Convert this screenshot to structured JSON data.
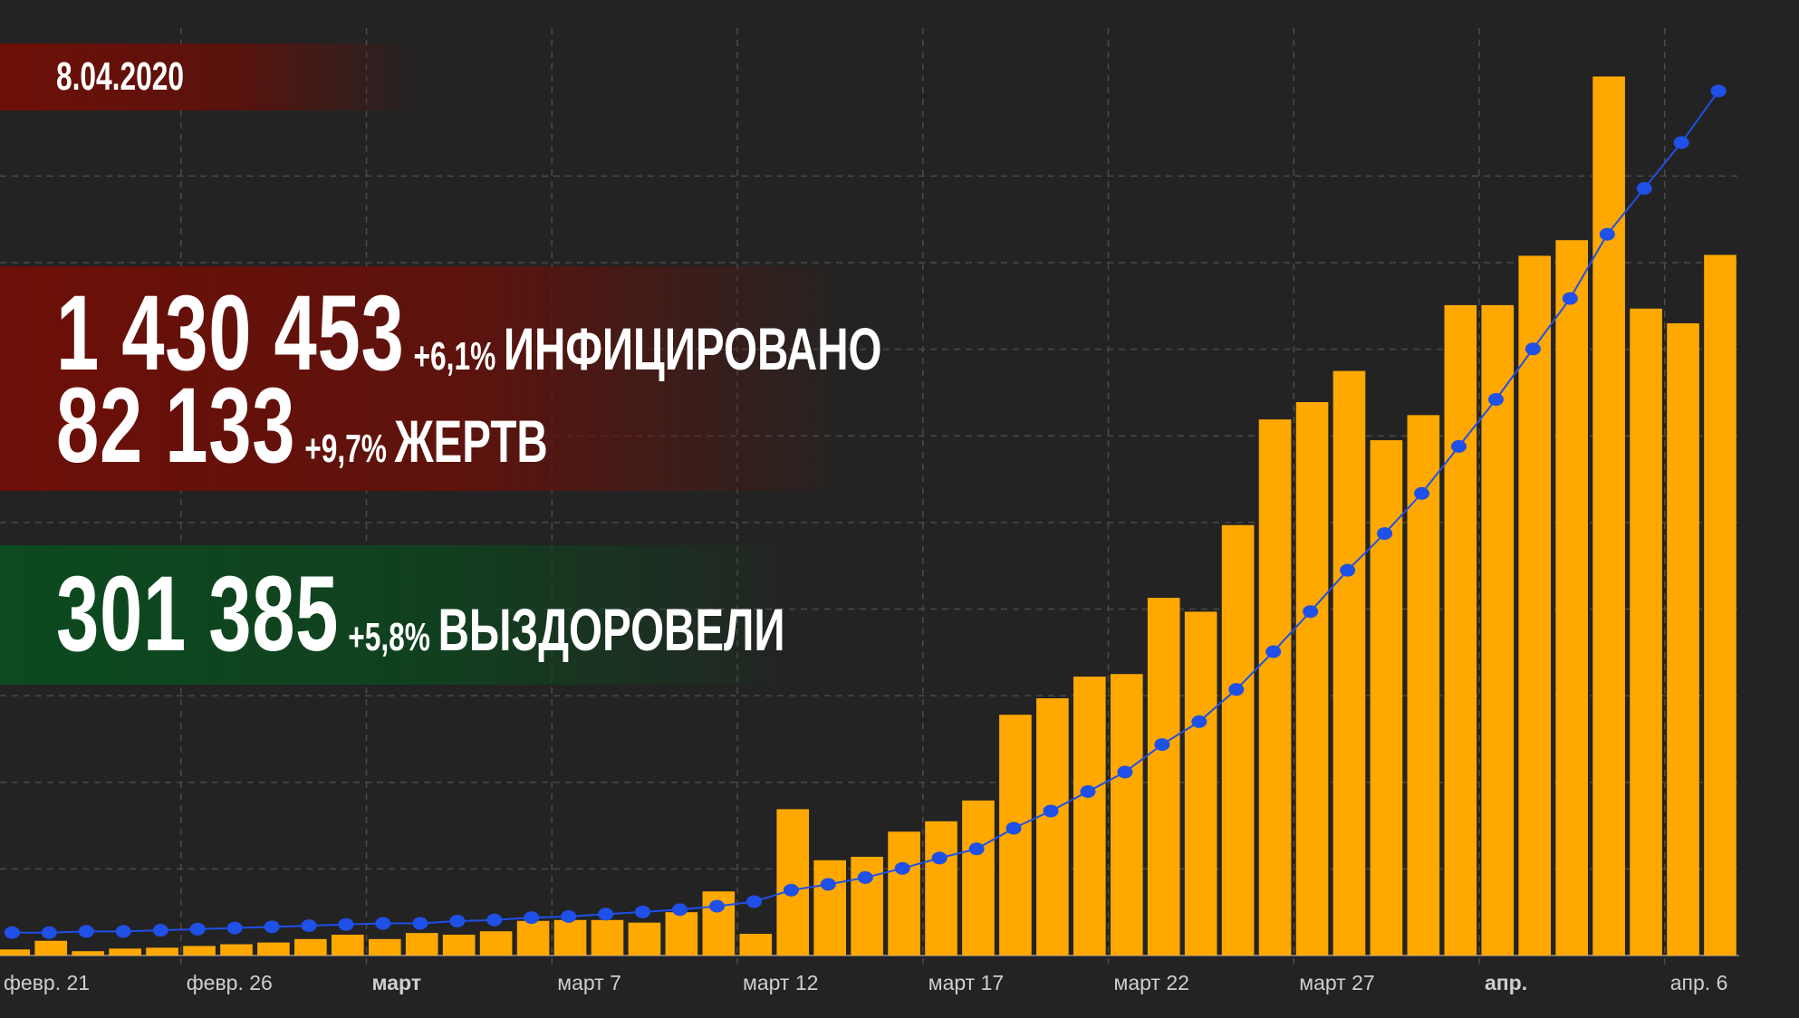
{
  "date": "8.04.2020",
  "stats": [
    {
      "value": "1 430 453",
      "change": "+6,1%",
      "label": "ИНФИЦИРОВАНО"
    },
    {
      "value": "82 133",
      "change": "+9,7%",
      "label": "ЖЕРТВ"
    },
    {
      "value": "301 385",
      "change": "+5,8%",
      "label": "ВЫЗДОРОВЕЛИ"
    }
  ],
  "chart_data": {
    "type": "bar",
    "categories": [
      "февр. 21",
      null,
      null,
      null,
      null,
      "февр. 26",
      null,
      null,
      null,
      null,
      "март",
      null,
      null,
      null,
      null,
      "март 7",
      null,
      null,
      null,
      null,
      "март 12",
      null,
      null,
      null,
      null,
      "март 17",
      null,
      null,
      null,
      null,
      "март 22",
      null,
      null,
      null,
      null,
      "март 27",
      null,
      null,
      null,
      null,
      "апр.",
      null,
      null,
      null,
      null,
      "апр. 6",
      null
    ],
    "series": [
      {
        "type": "bar",
        "color": "#ffa800",
        "values": [
          0.7,
          1.7,
          0.5,
          0.8,
          0.9,
          1.1,
          1.3,
          1.5,
          1.9,
          2.4,
          1.9,
          2.6,
          2.4,
          2.8,
          4.0,
          4.1,
          4.1,
          3.8,
          5.0,
          7.4,
          2.5,
          16.9,
          11.0,
          11.4,
          14.3,
          15.5,
          17.9,
          27.8,
          29.7,
          32.2,
          32.5,
          41.3,
          39.7,
          49.7,
          61.9,
          63.9,
          67.5,
          59.5,
          62.4,
          75.1,
          75.1,
          80.8,
          82.6,
          101.5,
          74.7,
          73.0,
          80.9
        ]
      },
      {
        "type": "line",
        "axis": "y2",
        "color": "#1f50e8",
        "values": [
          37.8,
          37.8,
          39.7,
          39.7,
          41.6,
          43.5,
          45.4,
          47.3,
          49.2,
          51.1,
          53.0,
          53.0,
          56.7,
          58.6,
          62.4,
          64.3,
          68.1,
          71.9,
          75.7,
          81.3,
          88.9,
          107.8,
          117.3,
          128.6,
          143.7,
          160.8,
          175.9,
          209.9,
          238.3,
          270.5,
          302.6,
          348.0,
          385.8,
          438.8,
          501.2,
          567.4,
          635.5,
          696.1,
          762.3,
          839.8,
          917.3,
          1000.6,
          1083.8,
          1189.7,
          1265.4,
          1341.0,
          1426.1
        ]
      }
    ],
    "ylim": [
      0,
      105
    ],
    "yticks": [
      10,
      20,
      30,
      40,
      50,
      60,
      70,
      80,
      90
    ],
    "y2lim": [
      0,
      1500
    ],
    "grid": true
  }
}
